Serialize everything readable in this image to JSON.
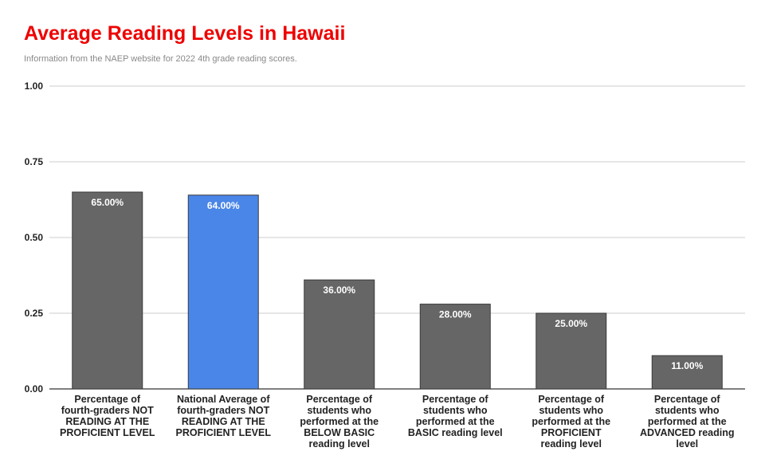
{
  "chart_data": {
    "type": "bar",
    "title": "Average Reading Levels in Hawaii",
    "subtitle": "Information from the NAEP website for 2022 4th grade reading scores.",
    "xlabel": "",
    "ylabel": "",
    "ylim": [
      0,
      1
    ],
    "yticks": [
      "0.00",
      "0.25",
      "0.50",
      "0.75",
      "1.00"
    ],
    "ytick_values": [
      0,
      0.25,
      0.5,
      0.75,
      1
    ],
    "grid": true,
    "categories": [
      "Percentage of fourth-graders NOT READING AT THE PROFICIENT LEVEL",
      "National Average of fourth-graders NOT READING AT THE PROFICIENT LEVEL",
      "Percentage of students who performed at the BELOW BASIC reading level",
      "Percentage of students who performed at the BASIC reading level",
      "Percentage of students who performed at the PROFICIENT reading level",
      "Percentage of students who performed at the ADVANCED reading level"
    ],
    "values": [
      0.65,
      0.64,
      0.36,
      0.28,
      0.25,
      0.11
    ],
    "data_labels": [
      "65.00%",
      "64.00%",
      "36.00%",
      "28.00%",
      "25.00%",
      "11.00%"
    ],
    "colors": [
      "#666666",
      "#4a86e8",
      "#666666",
      "#666666",
      "#666666",
      "#666666"
    ]
  }
}
